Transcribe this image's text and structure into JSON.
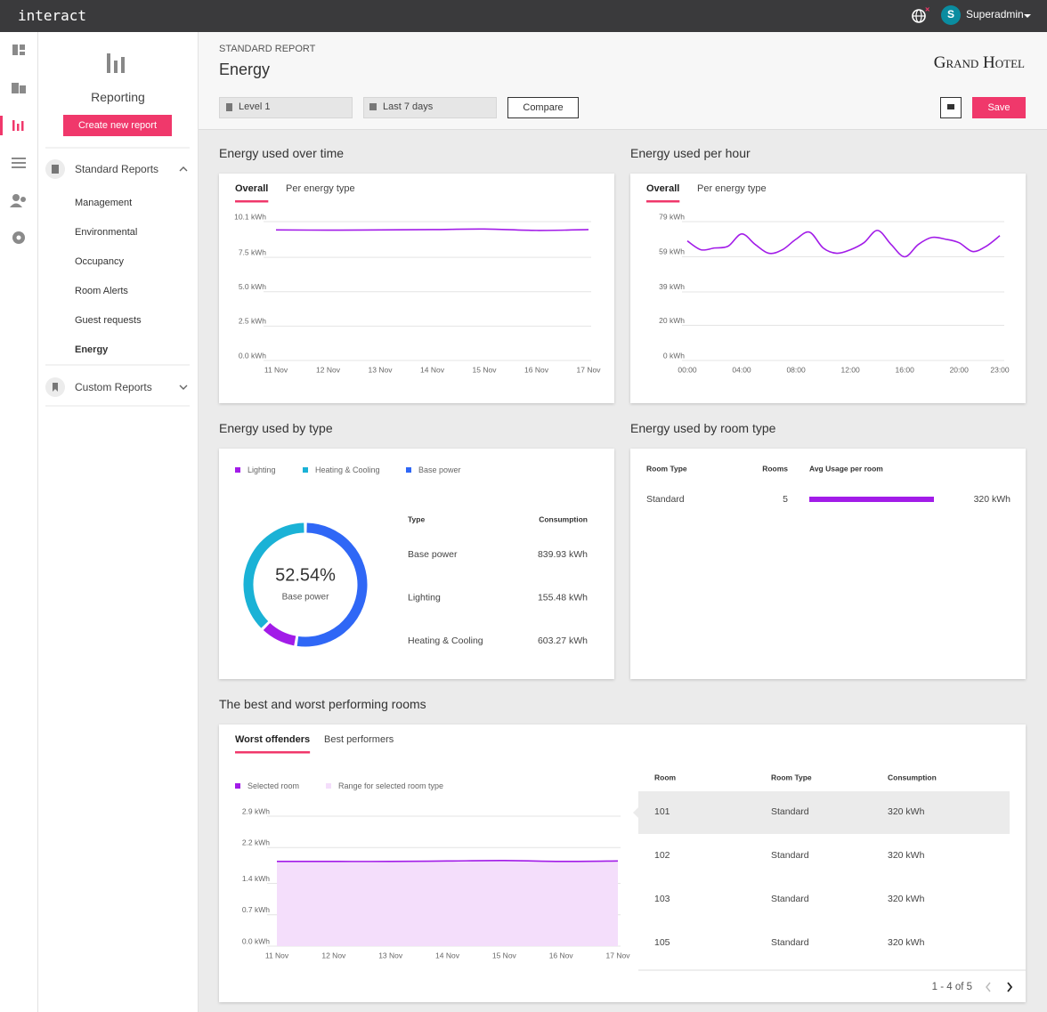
{
  "topbar": {
    "brand": "interact",
    "avatar": "S",
    "user": "Superadmin"
  },
  "sidebar": {
    "title": "Reporting",
    "button": "Create new report",
    "groups": [
      {
        "label": "Standard Reports",
        "items": [
          "Management",
          "Environmental",
          "Occupancy",
          "Room Alerts",
          "Guest requests",
          "Energy"
        ]
      },
      {
        "label": "Custom Reports"
      }
    ]
  },
  "header": {
    "eyebrow": "STANDARD REPORT",
    "title": "Energy",
    "logo": "Grand Hotel"
  },
  "filters": {
    "level": "Level 1",
    "period": "Last 7 days",
    "compare": "Compare",
    "save": "Save"
  },
  "chart_data": [
    {
      "type": "line",
      "title": "Energy used over time",
      "tabs": [
        "Overall",
        "Per energy type"
      ],
      "categories": [
        "11 Nov",
        "12 Nov",
        "13 Nov",
        "14 Nov",
        "15 Nov",
        "16 Nov",
        "17 Nov"
      ],
      "values": [
        9.5,
        9.48,
        9.5,
        9.52,
        9.56,
        9.46,
        9.52
      ],
      "color": "#a21ce8",
      "ylim": [
        0,
        10.1
      ],
      "yticks": [
        {
          "value": 0,
          "label": "0.0 kWh"
        },
        {
          "value": 2.5,
          "label": "2.5 kWh"
        },
        {
          "value": 5,
          "label": "5.0 kWh"
        },
        {
          "value": 7.5,
          "label": "7.5 kWh"
        },
        {
          "value": 10.1,
          "label": "10.1 kWh"
        }
      ],
      "grid": true
    },
    {
      "type": "line",
      "title": "Energy used per hour",
      "tabs": [
        "Overall",
        "Per energy type"
      ],
      "categories": [
        "00:00",
        null,
        null,
        null,
        "04:00",
        null,
        null,
        null,
        "08:00",
        null,
        null,
        null,
        "12:00",
        null,
        null,
        null,
        "16:00",
        null,
        null,
        null,
        "20:00",
        null,
        null,
        "23:00"
      ],
      "values": [
        68,
        63,
        64,
        65,
        72,
        66,
        61,
        63,
        69,
        73,
        64,
        61,
        63,
        67,
        74,
        66,
        59,
        66,
        70,
        69,
        67,
        62,
        65,
        71
      ],
      "color": "#a21ce8",
      "ylim": [
        0,
        79
      ],
      "yticks": [
        {
          "value": 0,
          "label": "0 kWh"
        },
        {
          "value": 20,
          "label": "20 kWh"
        },
        {
          "value": 39,
          "label": "39 kWh"
        },
        {
          "value": 59,
          "label": "59 kWh"
        },
        {
          "value": 79,
          "label": "79 kWh"
        }
      ],
      "grid": true
    },
    {
      "type": "donut",
      "title": "Energy used by type",
      "categories": [
        "Base power",
        "Lighting",
        "Heating & Cooling"
      ],
      "values": [
        839.93,
        155.48,
        603.27
      ],
      "value_labels": [
        "839.93 kWh",
        "155.48 kWh",
        "603.27 kWh"
      ],
      "colors": [
        "#2f67f6",
        "#a21ce8",
        "#1ab2d6"
      ],
      "center_label": "52.54%",
      "center_caption": "Base power",
      "table_columns": [
        "Type",
        "Consumption"
      ]
    },
    {
      "type": "area",
      "title": "The best and worst performing rooms",
      "tabs": [
        "Worst offenders",
        "Best performers"
      ],
      "categories": [
        "11 Nov",
        "12 Nov",
        "13 Nov",
        "14 Nov",
        "15 Nov",
        "16 Nov",
        "17 Nov"
      ],
      "series": [
        {
          "name": "Selected room",
          "color": "#a21ce8",
          "values": [
            1.89,
            1.89,
            1.89,
            1.9,
            1.91,
            1.89,
            1.9
          ]
        },
        {
          "name": "Range for selected room type",
          "color": "#f4defb",
          "values": [
            1.89,
            1.89,
            1.89,
            1.9,
            1.91,
            1.89,
            1.9
          ]
        }
      ],
      "ylim": [
        0,
        2.9
      ],
      "yticks": [
        {
          "value": 0,
          "label": "0.0 kWh"
        },
        {
          "value": 0.7,
          "label": "0.7 kWh"
        },
        {
          "value": 1.4,
          "label": "1.4 kWh"
        },
        {
          "value": 2.2,
          "label": "2.2 kWh"
        },
        {
          "value": 2.9,
          "label": "2.9 kWh"
        }
      ],
      "grid": true
    }
  ],
  "room_types": {
    "title": "Energy used by room type",
    "columns": [
      "Room Type",
      "Rooms",
      "Avg Usage per room"
    ],
    "rows": [
      {
        "room_type": "Standard",
        "rooms": "5",
        "usage": 320,
        "usage_label": "320 kWh"
      }
    ]
  },
  "rooms": {
    "columns": [
      "Room",
      "Room Type",
      "Consumption"
    ],
    "rows": [
      [
        "101",
        "Standard",
        "320 kWh"
      ],
      [
        "102",
        "Standard",
        "320 kWh"
      ],
      [
        "103",
        "Standard",
        "320 kWh"
      ],
      [
        "105",
        "Standard",
        "320 kWh"
      ]
    ],
    "pagination": "1 - 4 of 5"
  }
}
